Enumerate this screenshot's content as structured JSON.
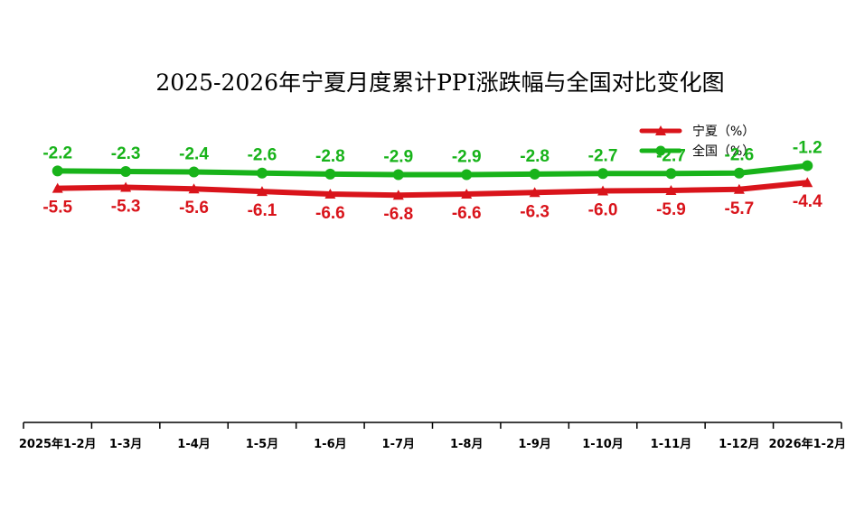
{
  "chart_data": {
    "type": "line",
    "title": "2025-2026年宁夏月度累计PPI涨跌幅与全国对比变化图",
    "categories": [
      "2025年1-2月",
      "1-3月",
      "1-4月",
      "1-5月",
      "1-6月",
      "1-7月",
      "1-8月",
      "1-9月",
      "1-10月",
      "1-11月",
      "1-12月",
      "2026年1-2月"
    ],
    "series": [
      {
        "name": "宁夏（%）",
        "color": "#d9141b",
        "marker": "triangle",
        "values": [
          -5.5,
          -5.3,
          -5.6,
          -6.1,
          -6.6,
          -6.8,
          -6.6,
          -6.3,
          -6.0,
          -5.9,
          -5.7,
          -4.4
        ]
      },
      {
        "name": "全国（%）",
        "color": "#18b31a",
        "marker": "circle",
        "values": [
          -2.2,
          -2.3,
          -2.4,
          -2.6,
          -2.8,
          -2.9,
          -2.9,
          -2.8,
          -2.7,
          -2.7,
          -2.6,
          -1.2
        ]
      }
    ],
    "ylim": [
      -50,
      20
    ],
    "grid": false,
    "legend_position": "top-right"
  }
}
